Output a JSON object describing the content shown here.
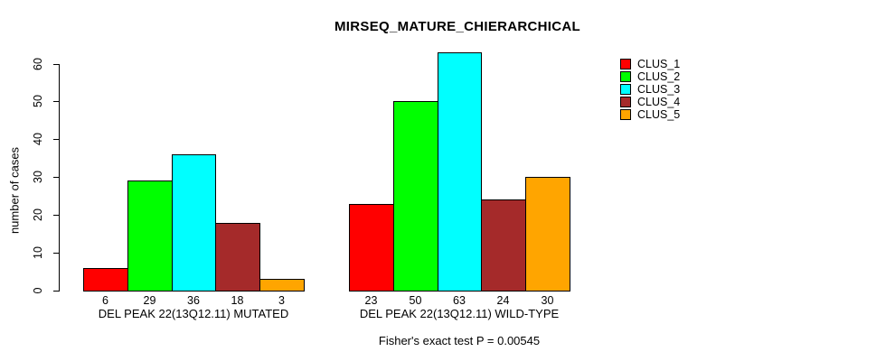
{
  "chart_data": {
    "type": "bar",
    "title": "MIRSEQ_MATURE_CHIERARCHICAL",
    "ylabel": "number of cases",
    "xlabel": "",
    "ylim": [
      0,
      63
    ],
    "yticks": [
      0,
      10,
      20,
      30,
      40,
      50,
      60
    ],
    "grid": false,
    "legend_position": "top-right",
    "categories": [
      "DEL PEAK 22(13Q12.11) MUTATED",
      "DEL PEAK 22(13Q12.11) WILD-TYPE"
    ],
    "series": [
      {
        "name": "CLUS_1",
        "color": "#FF0000",
        "values": [
          6,
          23
        ]
      },
      {
        "name": "CLUS_2",
        "color": "#00FF00",
        "values": [
          29,
          50
        ]
      },
      {
        "name": "CLUS_3",
        "color": "#00FFFF",
        "values": [
          36,
          63
        ]
      },
      {
        "name": "CLUS_4",
        "color": "#A52A2A",
        "values": [
          18,
          24
        ]
      },
      {
        "name": "CLUS_5",
        "color": "#FFA500",
        "values": [
          3,
          30
        ]
      }
    ],
    "groups": [
      {
        "label": "DEL PEAK 22(13Q12.11) MUTATED",
        "values": [
          6,
          29,
          36,
          18,
          3
        ]
      },
      {
        "label": "DEL PEAK 22(13Q12.11) WILD-TYPE",
        "values": [
          23,
          50,
          63,
          24,
          30
        ]
      }
    ],
    "annotation": "Fisher's exact test P = 0.00545"
  },
  "legend": {
    "items": [
      {
        "label": "CLUS_1",
        "color": "#FF0000"
      },
      {
        "label": "CLUS_2",
        "color": "#00FF00"
      },
      {
        "label": "CLUS_3",
        "color": "#00FFFF"
      },
      {
        "label": "CLUS_4",
        "color": "#A52A2A"
      },
      {
        "label": "CLUS_5",
        "color": "#FFA500"
      }
    ]
  }
}
